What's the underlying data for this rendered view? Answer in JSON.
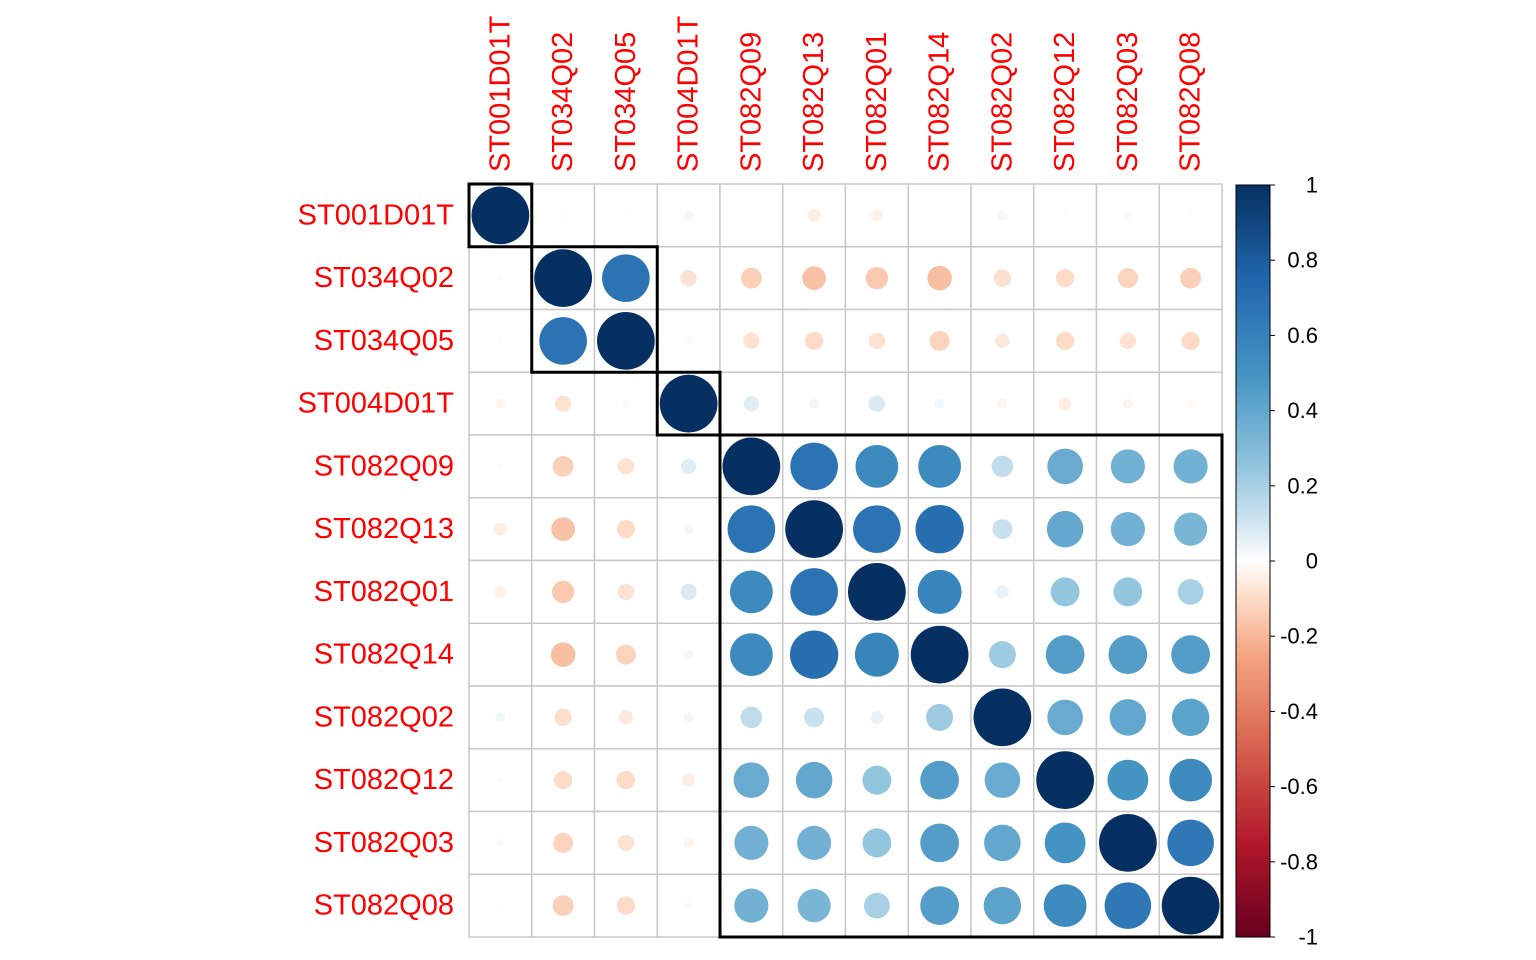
{
  "chart_data": {
    "type": "heatmap",
    "variables": [
      "ST001D01T",
      "ST034Q02",
      "ST034Q05",
      "ST004D01T",
      "ST082Q09",
      "ST082Q13",
      "ST082Q01",
      "ST082Q14",
      "ST082Q02",
      "ST082Q12",
      "ST082Q03",
      "ST082Q08"
    ],
    "matrix": [
      [
        1.0,
        0.01,
        0.01,
        -0.03,
        0.01,
        -0.05,
        -0.04,
        0.0,
        0.03,
        0.01,
        0.02,
        0.01
      ],
      [
        0.01,
        1.0,
        0.68,
        -0.08,
        -0.13,
        -0.17,
        -0.15,
        -0.18,
        -0.09,
        -0.1,
        -0.12,
        -0.13
      ],
      [
        0.01,
        0.68,
        1.0,
        -0.02,
        -0.08,
        -0.1,
        -0.08,
        -0.12,
        -0.06,
        -0.1,
        -0.08,
        -0.1
      ],
      [
        -0.03,
        -0.08,
        -0.02,
        1.0,
        0.07,
        0.03,
        0.08,
        0.03,
        -0.03,
        -0.05,
        -0.03,
        -0.02
      ],
      [
        0.01,
        -0.13,
        -0.08,
        0.07,
        1.0,
        0.68,
        0.55,
        0.55,
        0.14,
        0.38,
        0.35,
        0.35
      ],
      [
        -0.05,
        -0.17,
        -0.1,
        0.03,
        0.68,
        1.0,
        0.68,
        0.7,
        0.12,
        0.4,
        0.35,
        0.33
      ],
      [
        -0.04,
        -0.15,
        -0.08,
        0.08,
        0.55,
        0.68,
        1.0,
        0.58,
        0.05,
        0.25,
        0.25,
        0.2
      ],
      [
        0.0,
        -0.18,
        -0.12,
        0.03,
        0.55,
        0.7,
        0.58,
        1.0,
        0.22,
        0.45,
        0.45,
        0.45
      ],
      [
        0.03,
        -0.09,
        -0.06,
        -0.03,
        0.14,
        0.12,
        0.05,
        0.22,
        1.0,
        0.38,
        0.4,
        0.42
      ],
      [
        0.01,
        -0.1,
        -0.1,
        -0.05,
        0.38,
        0.4,
        0.25,
        0.45,
        0.38,
        1.0,
        0.5,
        0.55
      ],
      [
        0.02,
        -0.12,
        -0.08,
        -0.03,
        0.35,
        0.35,
        0.25,
        0.45,
        0.4,
        0.5,
        1.0,
        0.65
      ],
      [
        0.01,
        -0.13,
        -0.1,
        -0.02,
        0.35,
        0.33,
        0.2,
        0.45,
        0.42,
        0.55,
        0.65,
        1.0
      ]
    ],
    "clusters": [
      [
        0,
        0
      ],
      [
        1,
        2
      ],
      [
        3,
        3
      ],
      [
        4,
        11
      ]
    ],
    "colorbar": {
      "min": -1,
      "max": 1,
      "ticks": [
        "1",
        "0.8",
        "0.6",
        "0.4",
        "0.2",
        "0",
        "-0.2",
        "-0.4",
        "-0.6",
        "-0.8",
        "-1"
      ],
      "tick_values": [
        1,
        0.8,
        0.6,
        0.4,
        0.2,
        0,
        -0.2,
        -0.4,
        -0.6,
        -0.8,
        -1
      ],
      "stops": [
        {
          "v": -1.0,
          "color": "#67001F"
        },
        {
          "v": -0.75,
          "color": "#B2182B"
        },
        {
          "v": -0.5,
          "color": "#D6604D"
        },
        {
          "v": -0.25,
          "color": "#F4A582"
        },
        {
          "v": -0.1,
          "color": "#FDDBC7"
        },
        {
          "v": 0.0,
          "color": "#FFFFFF"
        },
        {
          "v": 0.1,
          "color": "#D1E5F0"
        },
        {
          "v": 0.25,
          "color": "#92C5DE"
        },
        {
          "v": 0.5,
          "color": "#4393C3"
        },
        {
          "v": 0.75,
          "color": "#2166AC"
        },
        {
          "v": 1.0,
          "color": "#053061"
        }
      ]
    },
    "label_color": "#FF0000",
    "grid_color": "#C8C8C8",
    "cluster_border_color": "#000000"
  }
}
